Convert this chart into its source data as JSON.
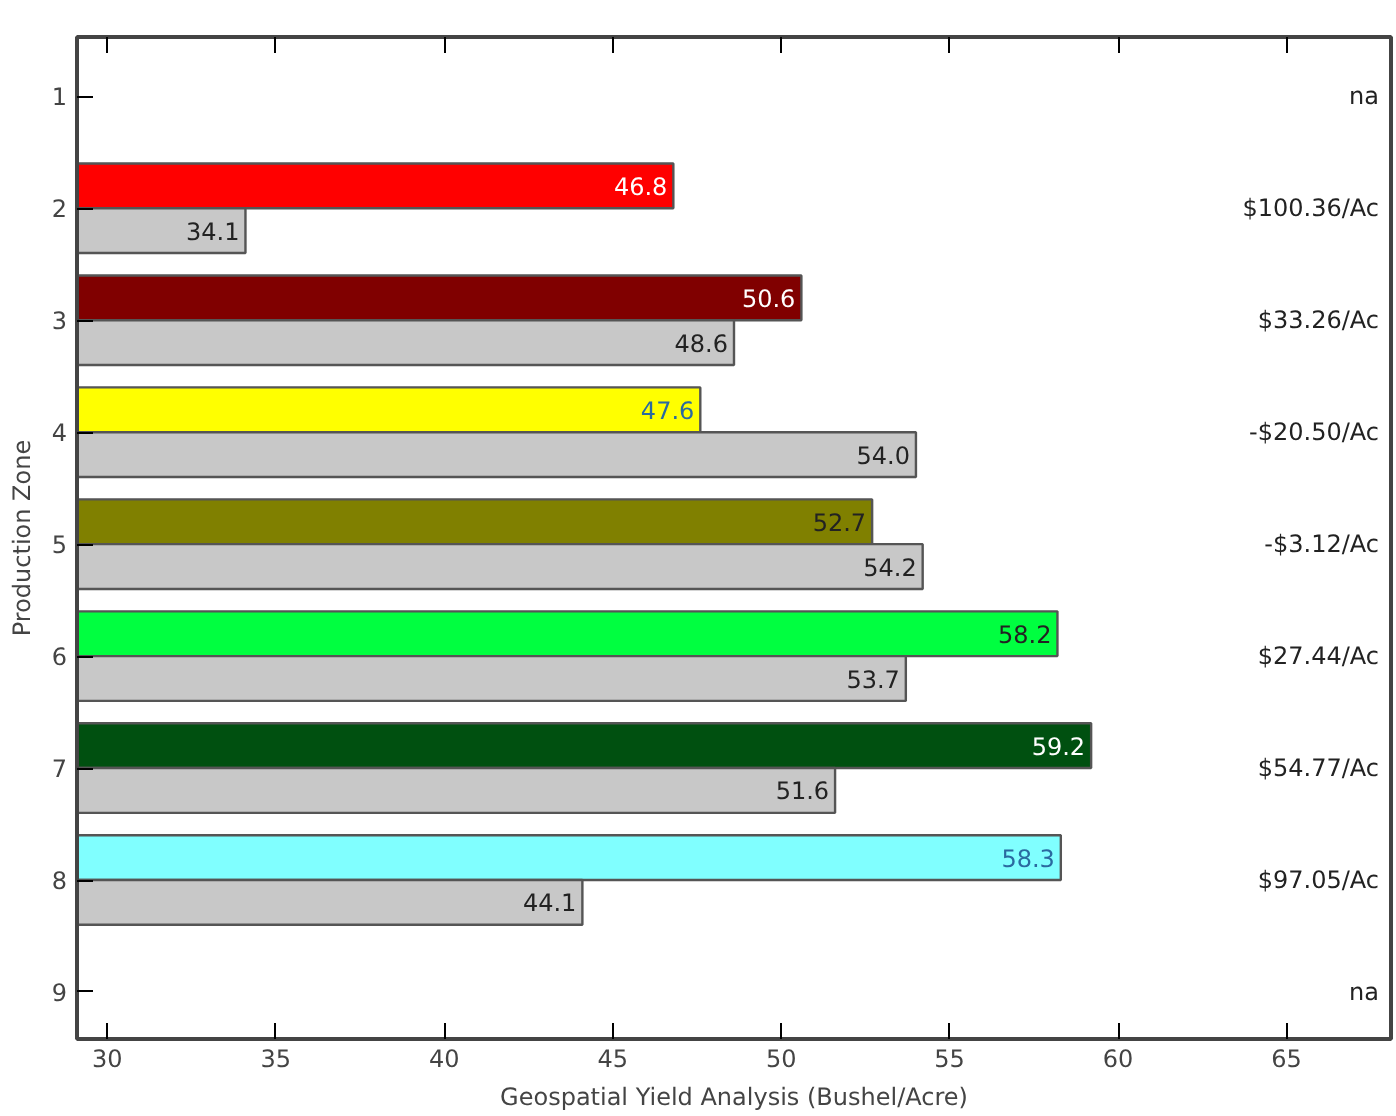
{
  "chart_data": {
    "type": "bar",
    "orientation": "horizontal",
    "categories": [
      "1",
      "2",
      "3",
      "4",
      "5",
      "6",
      "7",
      "8",
      "9"
    ],
    "series": [
      {
        "colors": [
          null,
          "#ff0000",
          "#800000",
          "#ffff00",
          "#808000",
          "#00ff40",
          "#005010",
          "#80ffff",
          null
        ],
        "values": [
          null,
          46.8,
          50.6,
          47.6,
          52.7,
          58.2,
          59.2,
          58.3,
          null
        ],
        "value_labels": [
          null,
          "46.8",
          "50.6",
          "47.6",
          "52.7",
          "58.2",
          "59.2",
          "58.3",
          null
        ]
      },
      {
        "color": "#c8c8c8",
        "values": [
          null,
          34.1,
          48.6,
          54.0,
          54.2,
          53.7,
          51.6,
          44.1,
          null
        ],
        "value_labels": [
          null,
          "34.1",
          "48.6",
          "54.0",
          "54.2",
          "53.7",
          "51.6",
          "44.1",
          null
        ]
      }
    ],
    "xlim": [
      29.1,
      68.1
    ],
    "xticks": [
      30,
      35,
      40,
      45,
      50,
      55,
      60,
      65
    ],
    "xlabel": "Geospatial Yield Analysis (Bushel/Acre)",
    "ylabel": "Production Zone",
    "grid": false,
    "annotations": [
      "na",
      "$100.36/Ac",
      "$33.26/Ac",
      "-$20.50/Ac",
      "-$3.12/Ac",
      "$27.44/Ac",
      "$54.77/Ac",
      "$97.05/Ac",
      "na"
    ]
  }
}
